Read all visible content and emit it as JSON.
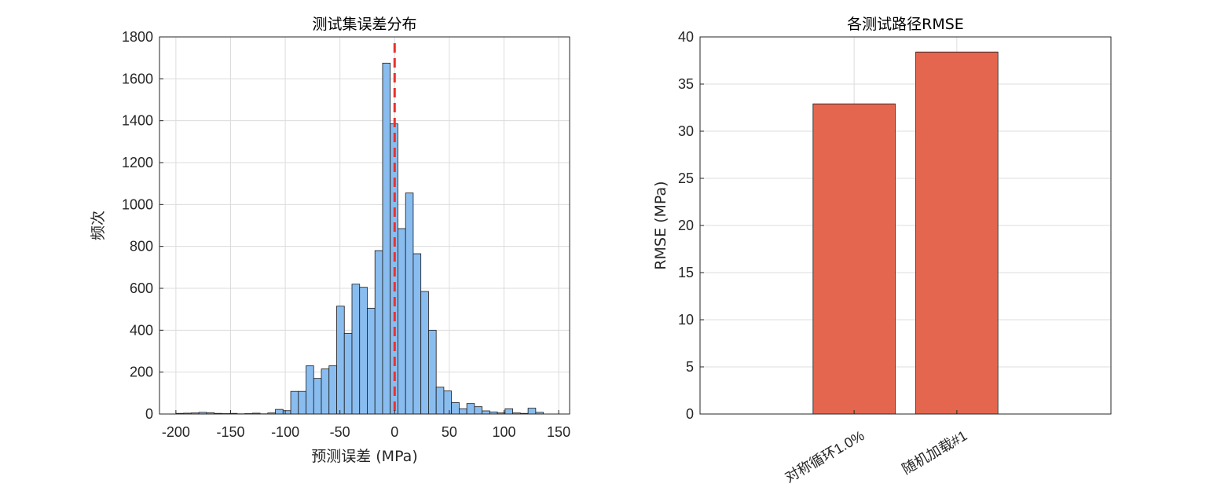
{
  "chart_data": [
    {
      "type": "bar",
      "subtype": "histogram",
      "title": "测试集误差分布",
      "xlabel": "预测误差 (MPa)",
      "ylabel": "频次",
      "xlim": [
        -215,
        160
      ],
      "ylim": [
        0,
        1800
      ],
      "xticks": [
        "-200",
        "-150",
        "-100",
        "-50",
        "0",
        "50",
        "100",
        "150"
      ],
      "yticks": [
        "0",
        "200",
        "400",
        "600",
        "800",
        "1000",
        "1200",
        "1400",
        "1600",
        "1800"
      ],
      "grid": true,
      "bar_color": "#8ABDEF",
      "edge_color": "#1A1A1A",
      "bin_edges": [
        -200,
        -193,
        -186,
        -179,
        -172,
        -165,
        -158,
        -151,
        -144,
        -137,
        -130,
        -123,
        -116,
        -109,
        -102,
        -95,
        -88,
        -81,
        -74,
        -67,
        -60,
        -53,
        -46,
        -39,
        -32,
        -25,
        -18,
        -11,
        -4,
        3,
        10,
        17,
        24,
        31,
        38,
        45,
        52,
        59,
        66,
        73,
        80,
        87,
        94,
        101,
        108,
        115,
        122,
        129
      ],
      "counts": [
        3,
        4,
        5,
        8,
        6,
        3,
        2,
        3,
        1,
        2,
        4,
        1,
        5,
        22,
        16,
        108,
        108,
        230,
        170,
        215,
        230,
        515,
        385,
        620,
        605,
        505,
        780,
        1675,
        1385,
        885,
        1055,
        765,
        585,
        400,
        128,
        110,
        55,
        25,
        50,
        35,
        15,
        10,
        5,
        25,
        5,
        3,
        28,
        8
      ],
      "reference_line": {
        "x": 0,
        "color": "#E8322E",
        "style": "dashed"
      }
    },
    {
      "type": "bar",
      "title": "各测试路径RMSE",
      "xlabel": "",
      "ylabel": "RMSE (MPa)",
      "categories": [
        "对称循环1.0%",
        "随机加载#1"
      ],
      "values": [
        32.9,
        38.4
      ],
      "ylim": [
        0,
        40
      ],
      "yticks": [
        "0",
        "5",
        "10",
        "15",
        "20",
        "25",
        "30",
        "35",
        "40"
      ],
      "grid": true,
      "bar_color": "#E5664E",
      "edge_color": "#1A1A1A"
    }
  ]
}
